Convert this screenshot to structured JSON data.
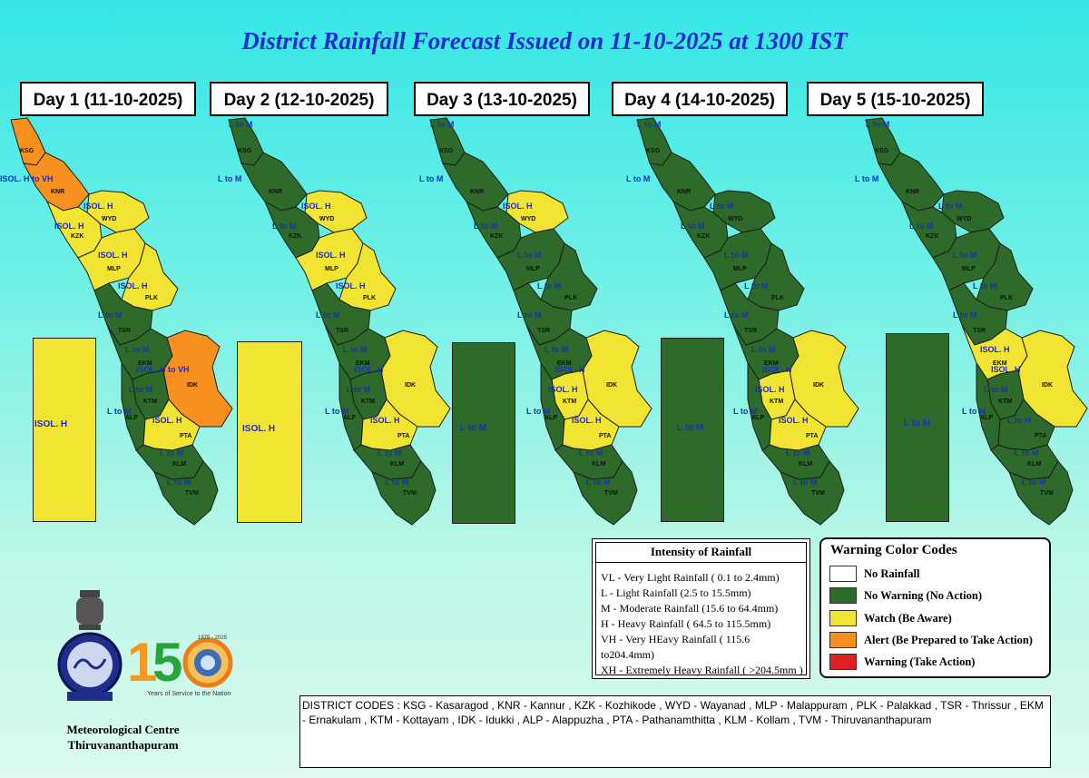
{
  "title": "District Rainfall Forecast Issued on  11-10-2025 at 1300 IST",
  "colors": {
    "green": "#2e6b2a",
    "yellow": "#f2e433",
    "orange": "#f7901e",
    "red": "#e02020",
    "white": "#ffffff"
  },
  "days": [
    {
      "label": "Day 1 (11-10-2025)",
      "island_label": "ISOL. H",
      "labels": {
        "ksg": "",
        "knr": "ISOL. H to VH",
        "wyd": "ISOL. H",
        "kzk": "ISOL. H",
        "mlp": "ISOL. H",
        "plk": "ISOL. H",
        "tsr": "L to M",
        "ekm": "L to M",
        "idk": "ISOL. H to VH",
        "ktm": "L to M",
        "alp": "L to M",
        "pta": "ISOL. H",
        "klm": "L to M",
        "tvm": "L to M"
      }
    },
    {
      "label": "Day 2 (12-10-2025)",
      "island_label": "ISOL. H",
      "labels": {
        "ksg": "L to M",
        "knr": "L to M",
        "wyd": "ISOL. H",
        "kzk": "L to M",
        "mlp": "ISOL. H",
        "plk": "ISOL. H",
        "tsr": "L to M",
        "ekm": "L to M",
        "idk": "ISOL. H",
        "ktm": "L to M",
        "alp": "L to M",
        "pta": "ISOL. H",
        "klm": "L to M",
        "tvm": "L to M"
      }
    },
    {
      "label": "Day 3 (13-10-2025)",
      "island_label": "L to M",
      "labels": {
        "ksg": "L to M",
        "knr": "L to M",
        "wyd": "ISOL. H",
        "kzk": "L to M",
        "mlp": "L to M",
        "plk": "L to M",
        "tsr": "L to M",
        "ekm": "L to M",
        "idk": "ISOL. H",
        "ktm": "ISOL. H",
        "alp": "L to M",
        "pta": "ISOL. H",
        "klm": "L to M",
        "tvm": "L to M"
      }
    },
    {
      "label": "Day 4 (14-10-2025)",
      "island_label": "L to M",
      "labels": {
        "ksg": "L to M",
        "knr": "L to M",
        "wyd": "L to M",
        "kzk": "L to M",
        "mlp": "L to M",
        "plk": "L to M",
        "tsr": "L to M",
        "ekm": "L to M",
        "idk": "ISOL. H",
        "ktm": "ISOL. H",
        "alp": "L to M",
        "pta": "ISOL. H",
        "klm": "L to M",
        "tvm": "L to M"
      }
    },
    {
      "label": "Day 5 (15-10-2025)",
      "island_label": "L to M",
      "labels": {
        "ksg": "L to M",
        "knr": "L to M",
        "wyd": "L to M",
        "kzk": "L to M",
        "mlp": "L to M",
        "plk": "L to M",
        "tsr": "L to M",
        "ekm": "ISOL. H",
        "idk": "ISOL. H",
        "ktm": "L to M",
        "alp": "L to M",
        "pta": "L to M",
        "klm": "L to M",
        "tvm": "L to M"
      }
    }
  ],
  "district_codes_on_map": {
    "ksg": "KSG",
    "knr": "KNR",
    "wyd": "WYD",
    "kzk": "KZK",
    "mlp": "MLP",
    "plk": "PLK",
    "tsr": "TSR",
    "ekm": "EKM",
    "idk": "IDK",
    "ktm": "KTM",
    "alp": "ALP",
    "pta": "PTA",
    "klm": "KLM",
    "tvm": "TVM"
  },
  "intensity": {
    "title": "Intensity of Rainfall",
    "rows": [
      "VL - Very Light Rainfall ( 0.1 to 2.4mm)",
      "L  - Light Rainfall (2.5 to 15.5mm)",
      "M  - Moderate Rainfall (15.6 to 64.4mm)",
      "H  - Heavy Rainfall ( 64.5 to 115.5mm)",
      "VH - Very HEavy Rainfall ( 115.6 to204.4mm)",
      "XH - Extremely Heavy Rainfall ( >204.5mm )"
    ]
  },
  "warning_codes": {
    "title": "Warning Color Codes",
    "items": [
      {
        "label": "No Rainfall",
        "color": "#ffffff"
      },
      {
        "label": "No Warning (No Action)",
        "color": "#2e6b2a"
      },
      {
        "label": "Watch (Be Aware)",
        "color": "#f2e433"
      },
      {
        "label": "Alert (Be Prepared to Take Action)",
        "color": "#f7901e"
      },
      {
        "label": "Warning (Take Action)",
        "color": "#e02020"
      }
    ]
  },
  "district_codes_text": "DISTRICT CODES : KSG - Kasaragod , KNR - Kannur , KZK - Kozhikode , WYD - Wayanad , MLP - Malappuram , PLK - Palakkad , TSR - Thrissur , EKM - Ernakulam , KTM - Kottayam , IDK - Idukki , ALP - Alappuzha ,      PTA - Pathanamthitta , KLM - Kollam , TVM - Thiruvananthapuram",
  "centre": {
    "line1": "Meteorological Centre",
    "line2": "Thiruvananthapuram"
  },
  "logo150": {
    "number": "150",
    "tagline": "Years of Service to the Nation",
    "years": "1875 - 2025"
  }
}
